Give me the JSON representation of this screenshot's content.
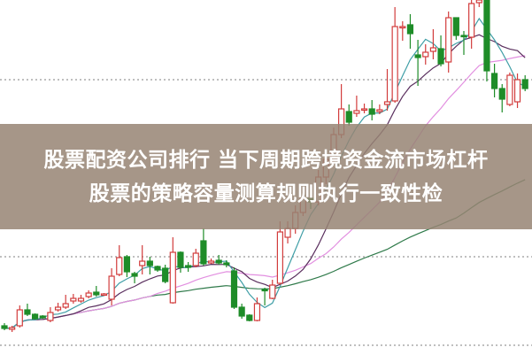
{
  "banner": {
    "line1": "股票配资公司排行 当下周期跨境资金流市场杠杆",
    "line2": "股票的策略容量测算规则执行一致性检"
  },
  "chart_data": {
    "type": "candlestick",
    "title": "",
    "xlabel": "",
    "ylabel": "",
    "ylim": [
      0,
      100
    ],
    "grid": {
      "horizontal_dotted": [
        77.5,
        27.5,
        2.5
      ]
    },
    "colors": {
      "up": "#d23c3c",
      "down": "#1e8c28",
      "ma5": "#3f9ea6",
      "ma10": "#5a2f5e",
      "ma20": "#e28fe0",
      "ma60": "#2f7a4a"
    },
    "moving_averages": [
      5,
      10,
      20,
      60
    ],
    "candles": [
      [
        8,
        7.25,
        8.75,
        6.75
      ],
      [
        7,
        7.5,
        8,
        6.25
      ],
      [
        8,
        12.5,
        13.75,
        7.5
      ],
      [
        12.5,
        11.25,
        14.25,
        10.75
      ],
      [
        11.25,
        10,
        11.5,
        9.75
      ],
      [
        10.75,
        10.25,
        11,
        10
      ],
      [
        9.5,
        11.75,
        13.25,
        9
      ],
      [
        12.5,
        13.25,
        14.5,
        12
      ],
      [
        13.25,
        14.25,
        16.75,
        12.75
      ],
      [
        15,
        15.75,
        17,
        14.25
      ],
      [
        15,
        15.75,
        16.75,
        14.5
      ],
      [
        16.25,
        17.25,
        18,
        15.75
      ],
      [
        17.5,
        16.75,
        19.25,
        16.25
      ],
      [
        16.75,
        17,
        17.25,
        16.5
      ],
      [
        15.5,
        22,
        24.25,
        13.75
      ],
      [
        22.5,
        27.25,
        30.75,
        22
      ],
      [
        27.5,
        23.25,
        28,
        21.75
      ],
      [
        22.75,
        22,
        23.25,
        20
      ],
      [
        25,
        26.25,
        30.75,
        22.5
      ],
      [
        26.25,
        25,
        27.5,
        22.5
      ],
      [
        24.75,
        23.75,
        25,
        23.25
      ],
      [
        24.25,
        20.5,
        25.25,
        20
      ],
      [
        14.5,
        28.75,
        33,
        14.25
      ],
      [
        28.75,
        24.5,
        29,
        23
      ],
      [
        25,
        24.5,
        26,
        23.25
      ],
      [
        25,
        28.5,
        29.75,
        24.5
      ],
      [
        32,
        25.5,
        35.5,
        25
      ],
      [
        25.75,
        26.25,
        27,
        25.5
      ],
      [
        26.5,
        25.75,
        28,
        25.25
      ],
      [
        25.75,
        25.25,
        26.5,
        24.5
      ],
      [
        23.5,
        13.25,
        24.5,
        12.75
      ],
      [
        13.25,
        10.75,
        14.25,
        10
      ],
      [
        11,
        9.5,
        11.25,
        9.25
      ],
      [
        9.5,
        14.25,
        16,
        9.25
      ],
      [
        18.25,
        18,
        18.75,
        13.75
      ],
      [
        15.75,
        19.5,
        21,
        15.5
      ],
      [
        20,
        34.5,
        37.5,
        19.5
      ],
      [
        33,
        35.5,
        37.5,
        31.25
      ],
      [
        35.5,
        40,
        42,
        34
      ],
      [
        40,
        44,
        46,
        39
      ],
      [
        44,
        43,
        47,
        41
      ],
      [
        43,
        50,
        52,
        42
      ],
      [
        50,
        55,
        57,
        48
      ],
      [
        55,
        62,
        64,
        54
      ],
      [
        62,
        69.25,
        76.25,
        61
      ],
      [
        68.5,
        65.5,
        70.5,
        64.5
      ],
      [
        68,
        68.75,
        73,
        67
      ],
      [
        69,
        69.25,
        70.75,
        68
      ],
      [
        69.25,
        67.75,
        71.75,
        66
      ],
      [
        68.5,
        69,
        70.5,
        67.75
      ],
      [
        70.5,
        71.25,
        80.5,
        68.75
      ],
      [
        71.5,
        92.5,
        98,
        71
      ],
      [
        92.25,
        92.5,
        94,
        88.5
      ],
      [
        93,
        90.5,
        96,
        86.25
      ],
      [
        84.5,
        83.75,
        88.75,
        75.75
      ],
      [
        84,
        85.25,
        87.5,
        81.75
      ],
      [
        85.5,
        86.5,
        91.75,
        83.25
      ],
      [
        86.25,
        82,
        90,
        81.25
      ],
      [
        82.5,
        95,
        96.75,
        79.5
      ],
      [
        95,
        90,
        95,
        88.75
      ],
      [
        90,
        89.75,
        91.25,
        84.5
      ],
      [
        89.5,
        99,
        100,
        86.25
      ],
      [
        99.25,
        100,
        100,
        98
      ],
      [
        100,
        80,
        100,
        77
      ],
      [
        79.25,
        75,
        82,
        72.5
      ],
      [
        75,
        72,
        76.25,
        68.25
      ],
      [
        70.5,
        78.75,
        79.5,
        70
      ],
      [
        71.25,
        77.5,
        79.25,
        69.5
      ],
      [
        77.5,
        75,
        78.75,
        74.25
      ]
    ]
  }
}
